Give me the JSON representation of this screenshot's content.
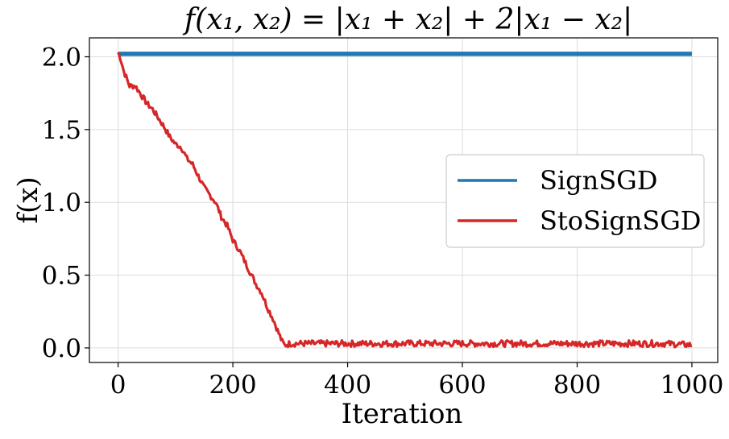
{
  "chart_data": {
    "type": "line",
    "title": "f(x₁, x₂) = |x₁ + x₂| + 2|x₁ − x₂|",
    "xlabel": "Iteration",
    "ylabel": "f(x)",
    "xlim": [
      -50,
      1045
    ],
    "ylim": [
      -0.1,
      2.13
    ],
    "xticks": [
      0,
      200,
      400,
      600,
      800,
      1000
    ],
    "xtick_labels": [
      "0",
      "200",
      "400",
      "600",
      "800",
      "1000"
    ],
    "yticks": [
      0.0,
      0.5,
      1.0,
      1.5,
      2.0
    ],
    "ytick_labels": [
      "0.0",
      "0.5",
      "1.0",
      "1.5",
      "2.0"
    ],
    "grid": true,
    "legend_position": "center-right",
    "series": [
      {
        "name": "SignSGD",
        "color": "#1f77b4",
        "x": [
          0,
          1000
        ],
        "y": [
          2.02,
          2.02
        ],
        "note_band": [
          2.005,
          2.035
        ]
      },
      {
        "name": "StoSignSGD",
        "color": "#d62728",
        "x": [
          0,
          5,
          10,
          15,
          20,
          30,
          40,
          50,
          60,
          70,
          80,
          90,
          100,
          110,
          120,
          130,
          140,
          150,
          160,
          170,
          180,
          190,
          200,
          210,
          220,
          230,
          240,
          250,
          260,
          270,
          280,
          285,
          290,
          300,
          350,
          400,
          450,
          500,
          550,
          600,
          650,
          700,
          750,
          800,
          850,
          900,
          950,
          1000
        ],
        "y": [
          2.03,
          1.98,
          1.9,
          1.85,
          1.8,
          1.8,
          1.74,
          1.68,
          1.64,
          1.58,
          1.52,
          1.45,
          1.4,
          1.38,
          1.3,
          1.26,
          1.18,
          1.1,
          1.05,
          1.0,
          0.9,
          0.84,
          0.74,
          0.68,
          0.6,
          0.52,
          0.44,
          0.38,
          0.28,
          0.2,
          0.1,
          0.05,
          0.02,
          0.03,
          0.03,
          0.03,
          0.03,
          0.03,
          0.03,
          0.03,
          0.03,
          0.03,
          0.03,
          0.03,
          0.03,
          0.03,
          0.03,
          0.02
        ]
      }
    ]
  }
}
